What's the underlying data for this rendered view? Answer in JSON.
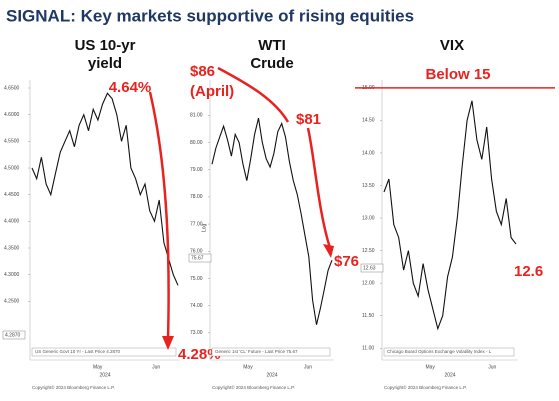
{
  "title": "SIGNAL: Key markets supportive of rising equities",
  "chart_data": [
    {
      "type": "line",
      "title": [
        "US 10-yr",
        "yield"
      ],
      "color": "#111111",
      "ylim": [
        4.14,
        4.665
      ],
      "yticks": [
        {
          "value": 4.25,
          "label": "4.2500"
        },
        {
          "value": 4.3,
          "label": "4.3000"
        },
        {
          "value": 4.35,
          "label": "4.3500"
        },
        {
          "value": 4.4,
          "label": "4.4000"
        },
        {
          "value": 4.45,
          "label": "4.4500"
        },
        {
          "value": 4.5,
          "label": "4.5000"
        },
        {
          "value": 4.55,
          "label": "4.5500"
        },
        {
          "value": 4.6,
          "label": "4.6000"
        },
        {
          "value": 4.65,
          "label": "4.6500"
        }
      ],
      "values": [
        4.5,
        4.48,
        4.52,
        4.47,
        4.45,
        4.49,
        4.53,
        4.55,
        4.57,
        4.54,
        4.58,
        4.6,
        4.57,
        4.61,
        4.59,
        4.62,
        4.64,
        4.63,
        4.6,
        4.55,
        4.58,
        4.5,
        4.48,
        4.45,
        4.47,
        4.42,
        4.4,
        4.44,
        4.36,
        4.33,
        4.3,
        4.28
      ],
      "xtick_labels": [
        "May",
        "Jun"
      ],
      "year": "2024",
      "last_label": "4.2870",
      "legend": "US Generic Govt 10 Yr - Last Price 4.2870",
      "footer": "Copyright© 2024 Bloomberg Finance L.P.",
      "annotations": [
        "4.64%",
        "4.28%"
      ]
    },
    {
      "type": "line",
      "title": [
        "WTI",
        "Crude"
      ],
      "color": "#111111",
      "log": true,
      "log_label": "Log",
      "ylim": [
        72,
        82.3
      ],
      "yticks": [
        {
          "value": 73,
          "label": "73.00"
        },
        {
          "value": 74,
          "label": "74.00"
        },
        {
          "value": 75,
          "label": "75.00"
        },
        {
          "value": 76,
          "label": "76.00"
        },
        {
          "value": 77,
          "label": "77.00"
        },
        {
          "value": 78,
          "label": "78.00"
        },
        {
          "value": 79,
          "label": "79.00"
        },
        {
          "value": 80,
          "label": "80.00"
        },
        {
          "value": 81,
          "label": "81.00"
        }
      ],
      "values": [
        79.2,
        79.8,
        80.2,
        80.6,
        80.1,
        79.5,
        80.3,
        80.0,
        79.2,
        78.6,
        79.4,
        80.3,
        80.9,
        80.0,
        79.4,
        79.1,
        79.6,
        80.4,
        80.7,
        80.2,
        79.3,
        78.6,
        78.1,
        77.4,
        76.6,
        75.8,
        74.2,
        73.3,
        73.9,
        74.6,
        75.3,
        75.67
      ],
      "xtick_labels": [
        "May",
        "Jun"
      ],
      "year": "2024",
      "last_label": "75.67",
      "legend": "Generic 1st 'CL' Future - Last Price 75.67",
      "footer": "Copyright© 2024 Bloomberg Finance L.P.",
      "annotations": [
        "$86",
        "(April)",
        "$81",
        "$76"
      ]
    },
    {
      "type": "line",
      "title": [
        "VIX"
      ],
      "color": "#111111",
      "ylim": [
        10.82,
        15.12
      ],
      "yticks": [
        {
          "value": 11,
          "label": "11.00"
        },
        {
          "value": 11.5,
          "label": "11.50"
        },
        {
          "value": 12,
          "label": "12.00"
        },
        {
          "value": 12.5,
          "label": "12.50"
        },
        {
          "value": 13,
          "label": "13.00"
        },
        {
          "value": 13.5,
          "label": "13.50"
        },
        {
          "value": 14,
          "label": "14.00"
        },
        {
          "value": 14.5,
          "label": "14.50"
        },
        {
          "value": 15,
          "label": "15.00"
        }
      ],
      "values": [
        13.4,
        13.6,
        12.9,
        12.7,
        12.2,
        12.5,
        12.0,
        11.8,
        12.3,
        11.9,
        11.6,
        11.3,
        11.5,
        12.1,
        12.4,
        13.0,
        13.8,
        14.5,
        14.8,
        14.2,
        13.9,
        14.4,
        13.6,
        13.1,
        12.9,
        13.3,
        12.7,
        12.6
      ],
      "threshold": 15,
      "xtick_labels": [
        "May",
        "Jun"
      ],
      "year": "2024",
      "last_label": "12.63",
      "legend": "Chicago Board Options Exchange Volatility Index - L",
      "footer": "Copyright© 2024 Bloomberg Finance L.P.",
      "annotations": [
        "Below 15",
        "12.6"
      ]
    }
  ]
}
